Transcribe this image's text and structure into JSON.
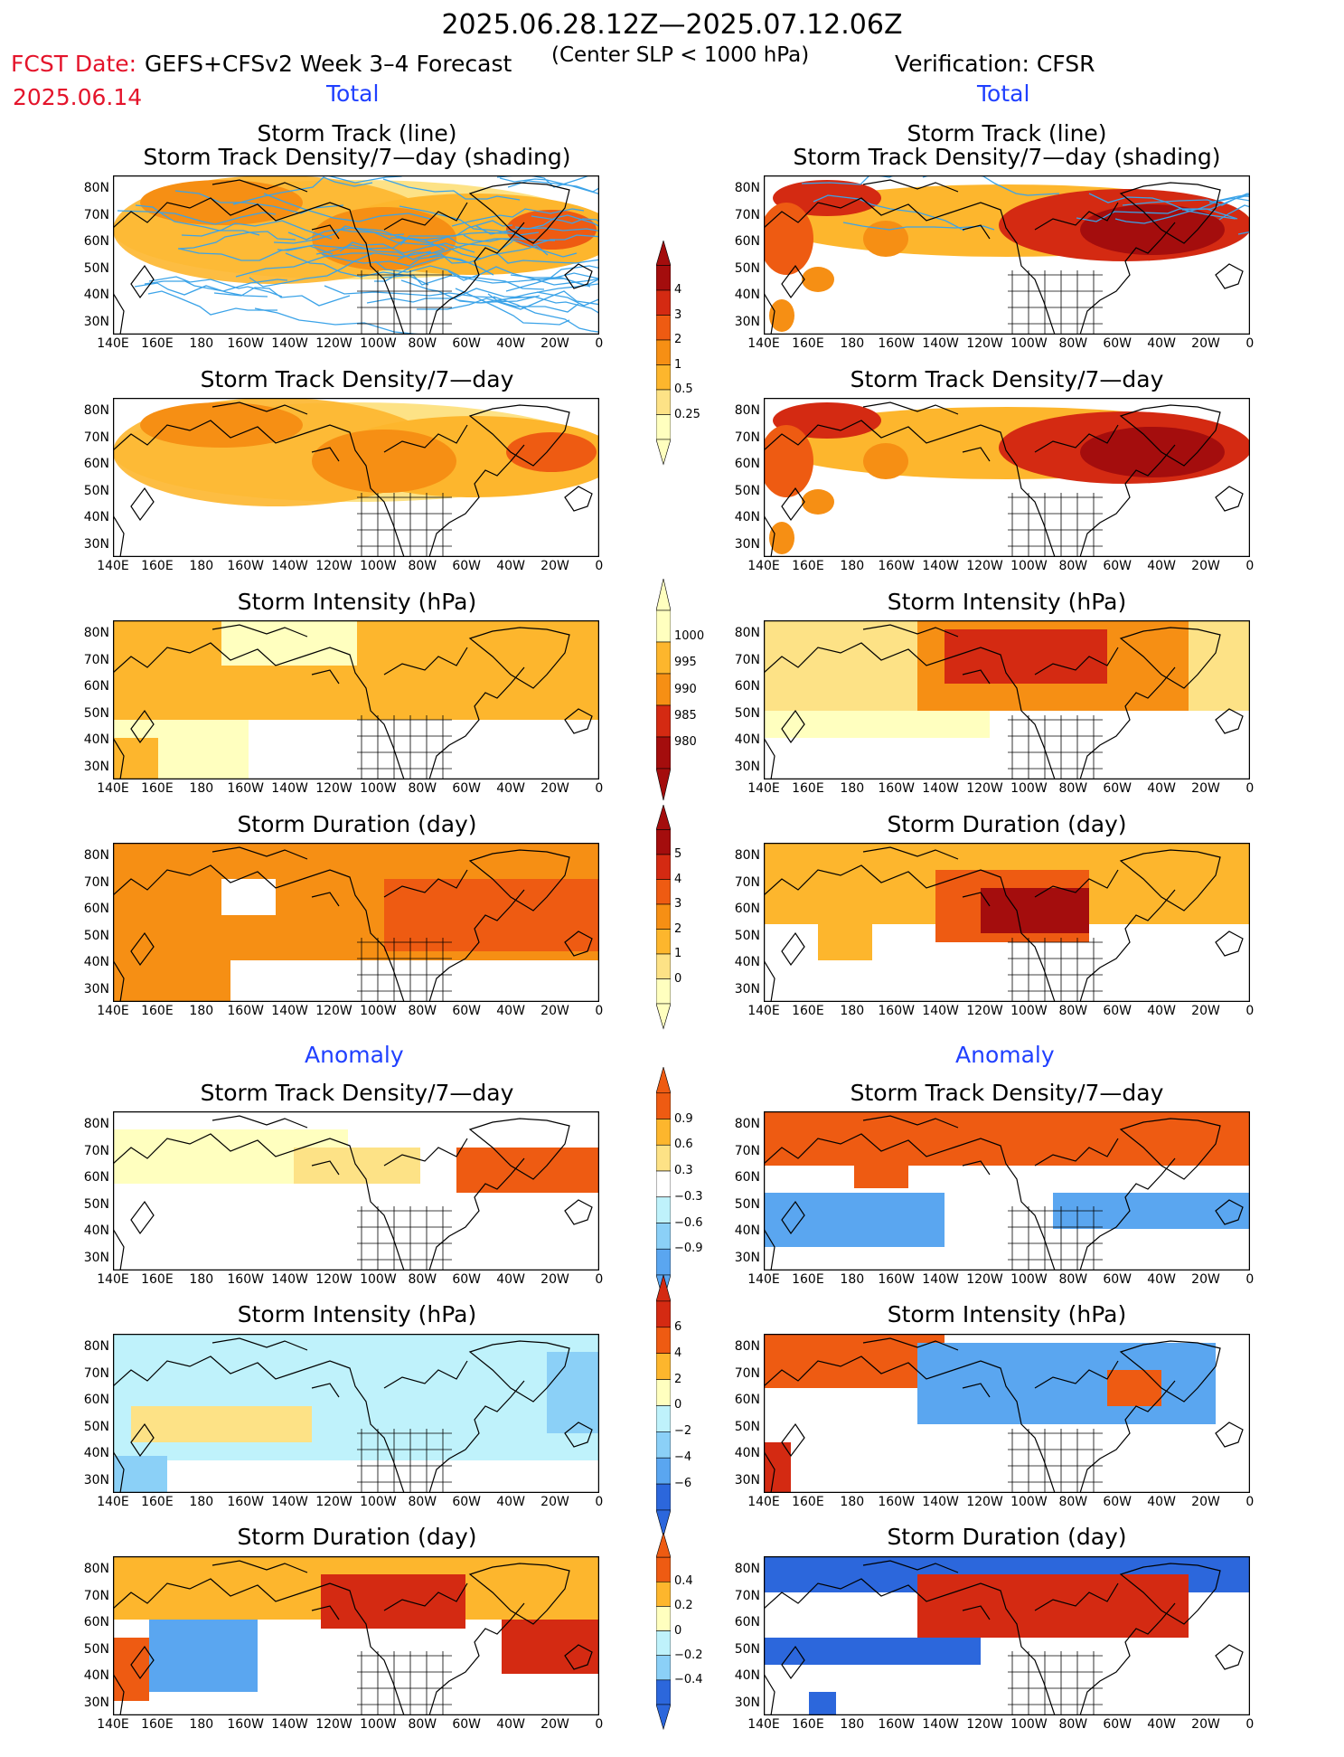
{
  "header": {
    "period": "2025.06.28.12Z—2025.07.12.06Z",
    "fcst_date_label": "FCST Date:",
    "fcst_date": "2025.06.14",
    "model": "GEFS+CFSv2 Week 3–4 Forecast",
    "criterion": "(Center SLP < 1000 hPa)",
    "verification": "Verification: CFSR"
  },
  "sections": {
    "total": "Total",
    "anomaly": "Anomaly"
  },
  "panel_titles": {
    "track_line": "Storm Track (line)",
    "track_shading": "Storm Track Density/7—day (shading)",
    "density": "Storm Track Density/7—day",
    "intensity": "Storm Intensity (hPa)",
    "duration": "Storm Duration (day)"
  },
  "axes": {
    "lat_labels": [
      "80N",
      "70N",
      "60N",
      "50N",
      "40N",
      "30N"
    ],
    "lon_labels": [
      "140E",
      "160E",
      "180",
      "160W",
      "140W",
      "120W",
      "100W",
      "80W",
      "60W",
      "40W",
      "20W",
      "0"
    ]
  },
  "colorbars": {
    "density_total": [
      "4",
      "3",
      "2",
      "1",
      "0.5",
      "0.25"
    ],
    "intensity_total": [
      "1000",
      "995",
      "990",
      "985",
      "980"
    ],
    "duration_total": [
      "5",
      "4",
      "3",
      "2",
      "1",
      "0"
    ],
    "density_anom": [
      "0.9",
      "0.6",
      "0.3",
      "−0.3",
      "−0.6",
      "−0.9"
    ],
    "intensity_anom": [
      "6",
      "4",
      "2",
      "0",
      "−2",
      "−4",
      "−6"
    ],
    "duration_anom": [
      "0.4",
      "0.2",
      "0",
      "−0.2",
      "−0.4"
    ]
  },
  "colors": {
    "warm": [
      "#ffffbf",
      "#fde286",
      "#fdb62d",
      "#f68f14",
      "#ee5b12",
      "#d42a12",
      "#a40d0d"
    ],
    "cool": [
      "#bff2fb",
      "#8bd0f7",
      "#5aa6f0",
      "#2c67dc"
    ],
    "title_red": "#e4142b",
    "section_blue": "#2040ff"
  }
}
